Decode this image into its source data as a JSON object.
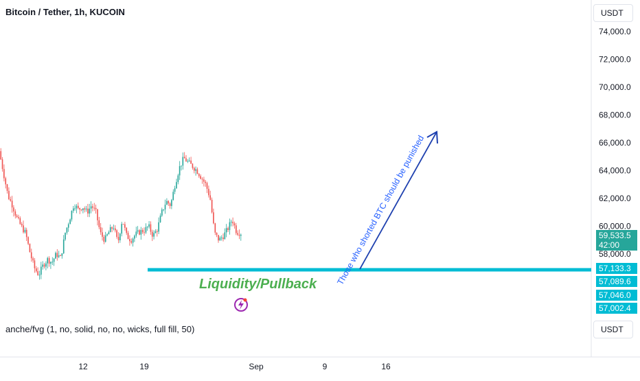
{
  "header": {
    "symbol_title": "Bitcoin / Tether, 1h, KUCOIN"
  },
  "scale": {
    "currency_top": "USDT",
    "currency_bottom": "USDT"
  },
  "indicator": {
    "label": "anche/fvg (1, no, solid, no, no, wicks, full fill, 50)"
  },
  "annotations": {
    "level_text": "Liquidity/Pullback",
    "arrow_text": "Those who shorted BTC should be punished"
  },
  "price_tags": [
    {
      "value": "59,533.5",
      "sub": "42:00",
      "color": "#26a69a"
    },
    {
      "value": "57,133.3",
      "color": "#00bcd4"
    },
    {
      "value": "57,089.6",
      "color": "#00bcd4"
    },
    {
      "value": "57,046.0",
      "color": "#00bcd4"
    },
    {
      "value": "57,002.4",
      "color": "#00bcd4"
    }
  ],
  "colors": {
    "up": "#26a69a",
    "down": "#ef5350",
    "level_line": "#00bcd4",
    "arrow": "#1e40af",
    "label_green": "#4caf50"
  },
  "chart_data": {
    "type": "candlestick",
    "title": "Bitcoin / Tether, 1h, KUCOIN",
    "ylim": [
      56000,
      75000
    ],
    "y_ticks": [
      "74,000.0",
      "72,000.0",
      "70,000.0",
      "68,000.0",
      "66,000.0",
      "64,000.0",
      "62,000.0",
      "60,000.0",
      "58,000.0"
    ],
    "x_ticks": [
      "12",
      "19",
      "Sep",
      "9",
      "16"
    ],
    "series": [
      {
        "name": "price_path",
        "values": [
          65400,
          63800,
          62200,
          61500,
          60600,
          60000,
          59500,
          58100,
          57000,
          56500,
          57200,
          57600,
          57400,
          58000,
          57700,
          59500,
          60500,
          61600,
          61200,
          61400,
          61000,
          61500,
          61000,
          59500,
          59000,
          59600,
          60000,
          58800,
          60500,
          59300,
          59000,
          59400,
          59600,
          59700,
          60000,
          59300,
          59800,
          61000,
          61800,
          61500,
          63000,
          64200,
          64900,
          64600,
          64300,
          64000,
          63500,
          63000,
          62000,
          59500,
          59000,
          59300,
          59800,
          60500,
          59600,
          59500
        ]
      }
    ],
    "horizontal_level": {
      "value": 57133.3,
      "label": "Liquidity/Pullback"
    },
    "price_labels": [
      59533.5,
      57133.3,
      57089.6,
      57046.0,
      57002.4
    ]
  }
}
